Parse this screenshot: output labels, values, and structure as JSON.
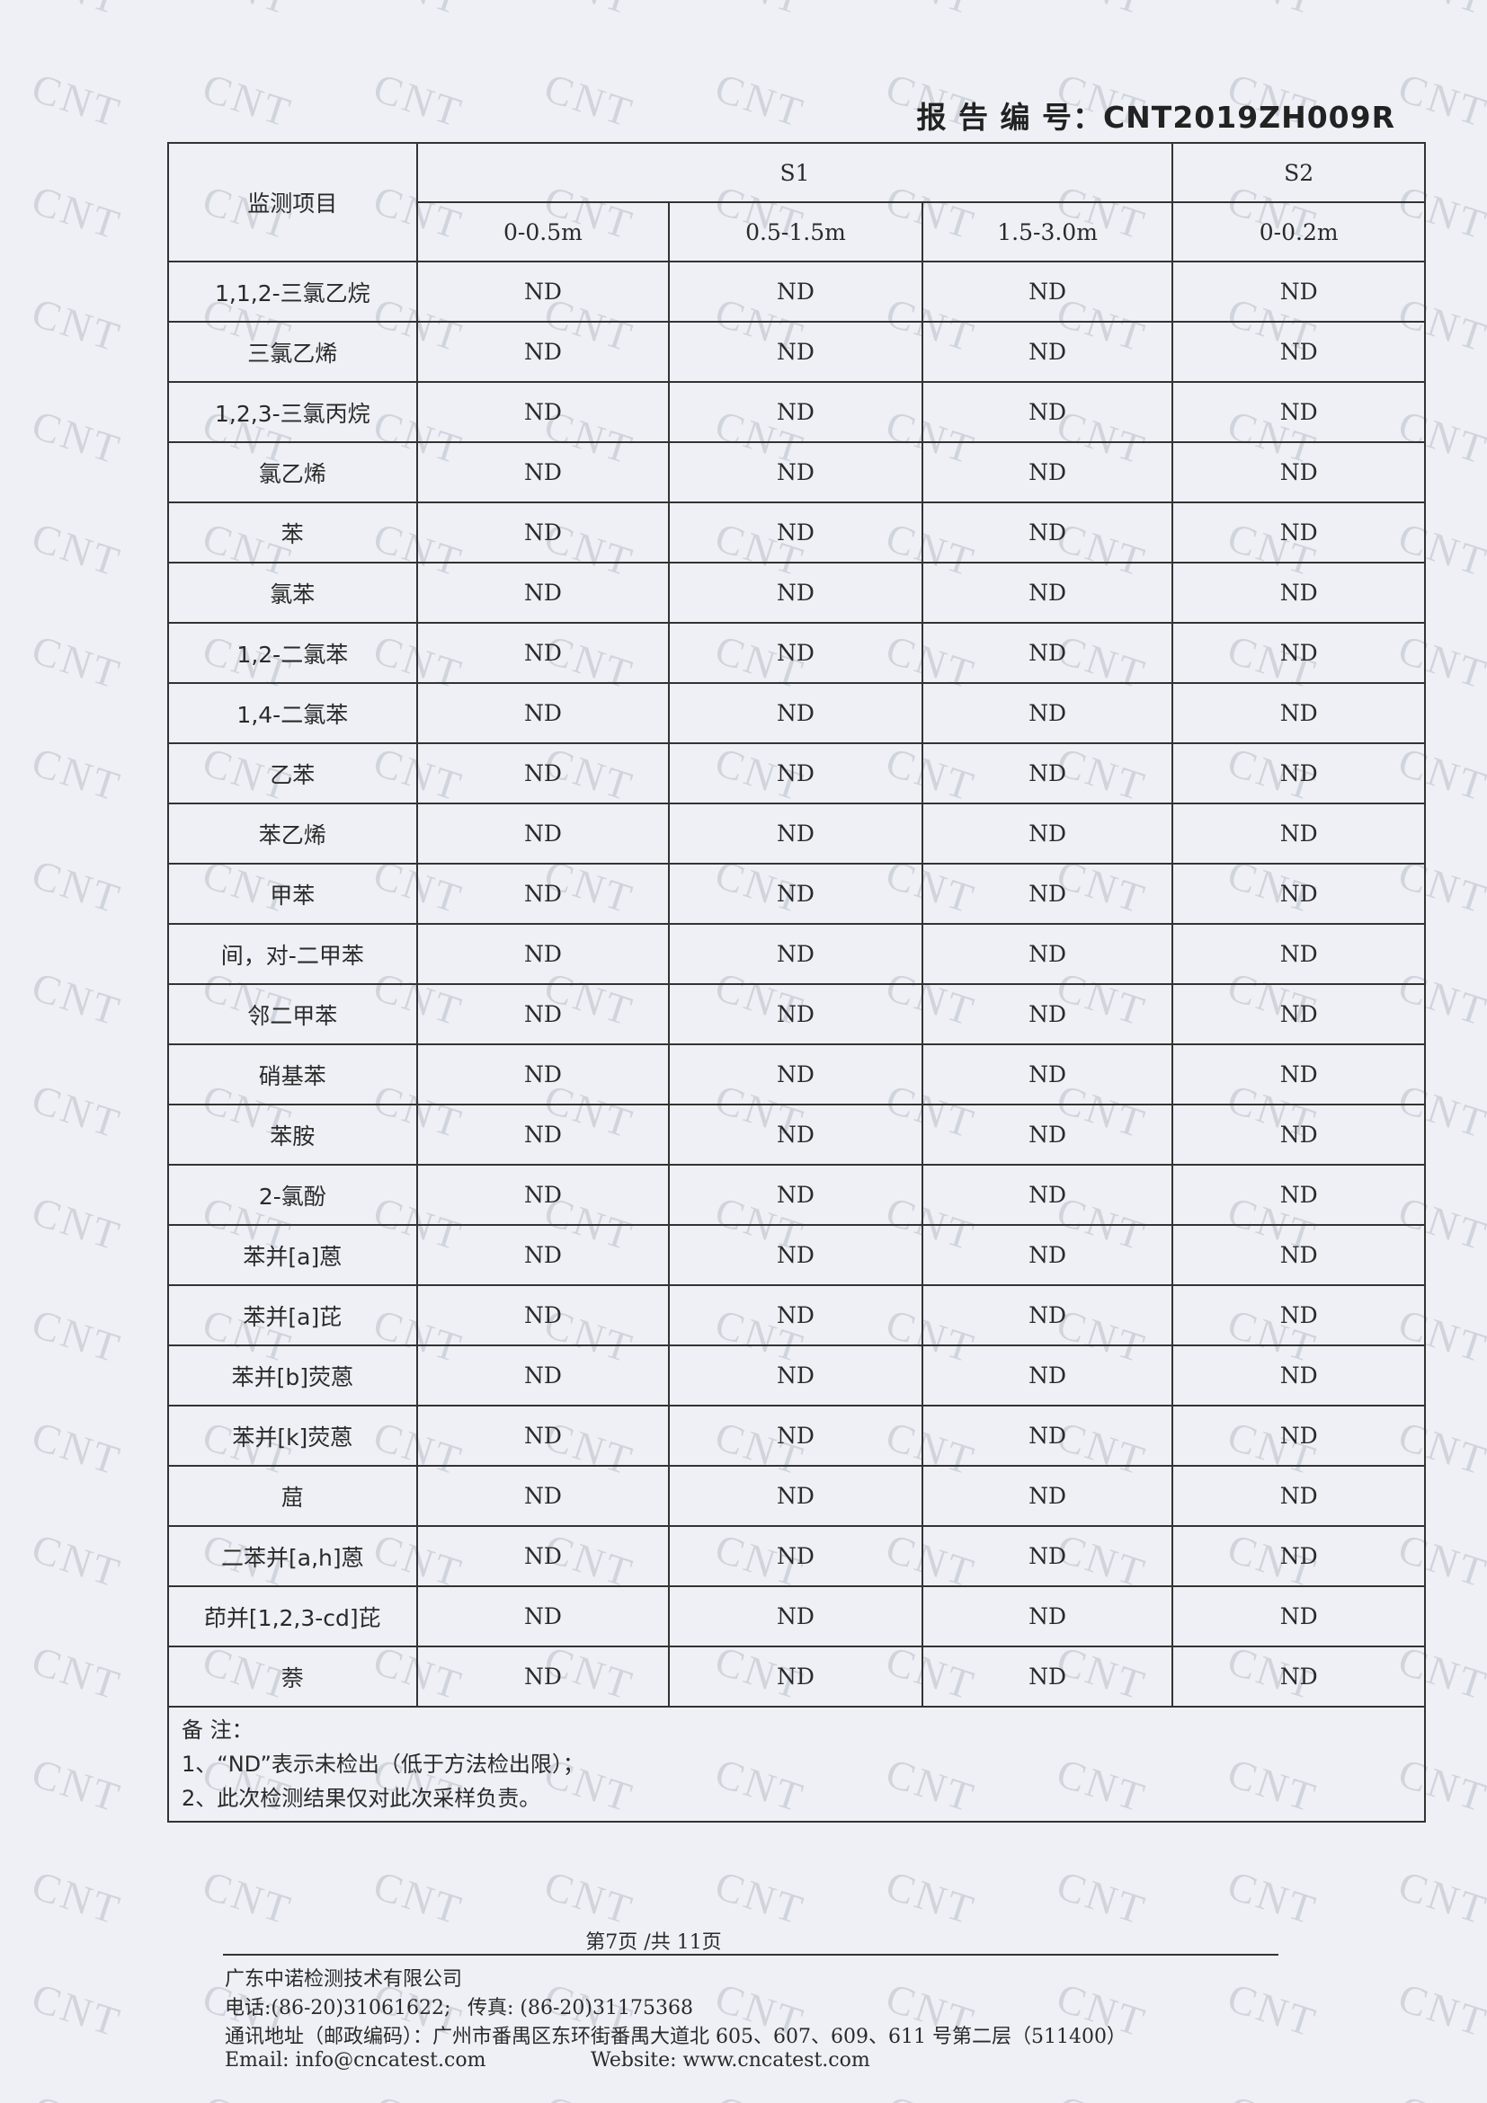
{
  "header": {
    "report_number": "报 告 编 号：CNT2019ZH009R"
  },
  "watermark": "CNT",
  "table": {
    "item_header": "监测项目",
    "groups": [
      {
        "label": "S1",
        "span": 3
      },
      {
        "label": "S2",
        "span": 1
      }
    ],
    "depths": [
      "0-0.5m",
      "0.5-1.5m",
      "1.5-3.0m",
      "0-0.2m"
    ],
    "rows": [
      {
        "item": "1,1,2-三氯乙烷",
        "values": [
          "ND",
          "ND",
          "ND",
          "ND"
        ]
      },
      {
        "item": "三氯乙烯",
        "values": [
          "ND",
          "ND",
          "ND",
          "ND"
        ]
      },
      {
        "item": "1,2,3-三氯丙烷",
        "values": [
          "ND",
          "ND",
          "ND",
          "ND"
        ]
      },
      {
        "item": "氯乙烯",
        "values": [
          "ND",
          "ND",
          "ND",
          "ND"
        ]
      },
      {
        "item": "苯",
        "values": [
          "ND",
          "ND",
          "ND",
          "ND"
        ]
      },
      {
        "item": "氯苯",
        "values": [
          "ND",
          "ND",
          "ND",
          "ND"
        ]
      },
      {
        "item": "1,2-二氯苯",
        "values": [
          "ND",
          "ND",
          "ND",
          "ND"
        ]
      },
      {
        "item": "1,4-二氯苯",
        "values": [
          "ND",
          "ND",
          "ND",
          "ND"
        ]
      },
      {
        "item": "乙苯",
        "values": [
          "ND",
          "ND",
          "ND",
          "ND"
        ]
      },
      {
        "item": "苯乙烯",
        "values": [
          "ND",
          "ND",
          "ND",
          "ND"
        ]
      },
      {
        "item": "甲苯",
        "values": [
          "ND",
          "ND",
          "ND",
          "ND"
        ]
      },
      {
        "item": "间，对-二甲苯",
        "values": [
          "ND",
          "ND",
          "ND",
          "ND"
        ]
      },
      {
        "item": "邻二甲苯",
        "values": [
          "ND",
          "ND",
          "ND",
          "ND"
        ]
      },
      {
        "item": "硝基苯",
        "values": [
          "ND",
          "ND",
          "ND",
          "ND"
        ]
      },
      {
        "item": "苯胺",
        "values": [
          "ND",
          "ND",
          "ND",
          "ND"
        ]
      },
      {
        "item": "2-氯酚",
        "values": [
          "ND",
          "ND",
          "ND",
          "ND"
        ]
      },
      {
        "item": "苯并[a]蒽",
        "values": [
          "ND",
          "ND",
          "ND",
          "ND"
        ]
      },
      {
        "item": "苯并[a]芘",
        "values": [
          "ND",
          "ND",
          "ND",
          "ND"
        ]
      },
      {
        "item": "苯并[b]荧蒽",
        "values": [
          "ND",
          "ND",
          "ND",
          "ND"
        ]
      },
      {
        "item": "苯并[k]荧蒽",
        "values": [
          "ND",
          "ND",
          "ND",
          "ND"
        ]
      },
      {
        "item": "䓛",
        "values": [
          "ND",
          "ND",
          "ND",
          "ND"
        ]
      },
      {
        "item": "二苯并[a,h]蒽",
        "values": [
          "ND",
          "ND",
          "ND",
          "ND"
        ]
      },
      {
        "item": "茚并[1,2,3-cd]芘",
        "values": [
          "ND",
          "ND",
          "ND",
          "ND"
        ]
      },
      {
        "item": "萘",
        "values": [
          "ND",
          "ND",
          "ND",
          "ND"
        ]
      }
    ],
    "notes": {
      "title": "备  注：",
      "lines": [
        "1、“ND”表示未检出（低于方法检出限）；",
        "2、此次检测结果仅对此次采样负责。"
      ]
    }
  },
  "footer": {
    "page": "第7页  /共 11页",
    "company": "广东中诺检测技术有限公司",
    "phone": "电话:(86-20)31061622;",
    "fax": "传真: (86-20)31175368",
    "address": "通讯地址（邮政编码）：广州市番禺区东环街番禺大道北 605、607、609、611 号第二层（511400）",
    "email": "Email: info@cncatest.com",
    "website": "Website: www.cncatest.com"
  }
}
